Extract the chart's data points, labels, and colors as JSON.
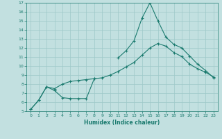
{
  "xlabel": "Humidex (Indice chaleur)",
  "xlim": [
    -0.5,
    23.5
  ],
  "ylim": [
    5,
    17
  ],
  "xticks": [
    0,
    1,
    2,
    3,
    4,
    5,
    6,
    7,
    8,
    9,
    10,
    11,
    12,
    13,
    14,
    15,
    16,
    17,
    18,
    19,
    20,
    21,
    22,
    23
  ],
  "yticks": [
    5,
    6,
    7,
    8,
    9,
    10,
    11,
    12,
    13,
    14,
    15,
    16,
    17
  ],
  "line_color": "#1a7a6e",
  "bg_color": "#c2e0e0",
  "grid_color": "#9ec8c8",
  "series": [
    {
      "x": [
        0,
        1,
        2,
        3,
        4,
        5,
        6,
        7,
        8
      ],
      "y": [
        5.2,
        6.2,
        7.7,
        7.3,
        6.5,
        6.4,
        6.4,
        6.4,
        8.6
      ]
    },
    {
      "x": [
        0,
        1,
        2,
        3,
        4,
        5,
        6,
        7,
        8,
        9,
        10,
        11,
        12,
        13,
        14,
        15,
        16,
        17,
        18,
        19,
        20,
        21,
        22,
        23
      ],
      "y": [
        5.2,
        6.2,
        7.7,
        7.5,
        8.0,
        8.3,
        8.4,
        8.5,
        8.6,
        8.7,
        9.0,
        9.4,
        9.9,
        10.4,
        11.2,
        12.0,
        12.5,
        12.2,
        11.5,
        11.05,
        10.2,
        9.7,
        9.3,
        8.8
      ]
    },
    {
      "x": [
        11,
        12,
        13,
        14,
        15,
        16,
        17,
        18,
        19,
        20,
        21,
        22,
        23
      ],
      "y": [
        10.9,
        11.7,
        12.8,
        15.3,
        17.0,
        15.0,
        13.2,
        12.4,
        12.0,
        11.1,
        10.2,
        9.5,
        8.7
      ]
    }
  ]
}
